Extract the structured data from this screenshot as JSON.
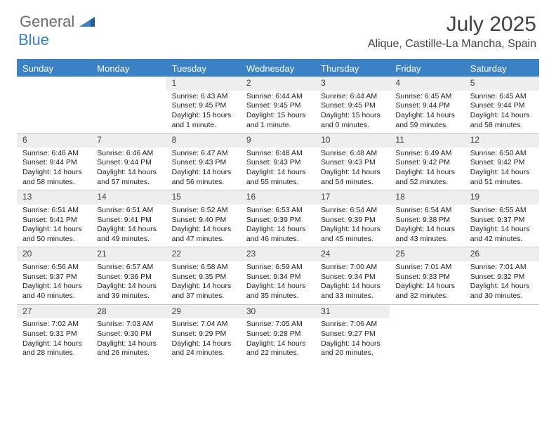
{
  "brand": {
    "general": "General",
    "blue": "Blue"
  },
  "title": "July 2025",
  "location": "Alique, Castille-La Mancha, Spain",
  "colors": {
    "header_bg": "#3b82c4",
    "daynum_bg": "#eeeeee",
    "text": "#404040",
    "border": "#c8c8c8"
  },
  "weekdays": [
    "Sunday",
    "Monday",
    "Tuesday",
    "Wednesday",
    "Thursday",
    "Friday",
    "Saturday"
  ],
  "weeks": [
    [
      null,
      null,
      {
        "n": "1",
        "sr": "Sunrise: 6:43 AM",
        "ss": "Sunset: 9:45 PM",
        "dl": "Daylight: 15 hours and 1 minute."
      },
      {
        "n": "2",
        "sr": "Sunrise: 6:44 AM",
        "ss": "Sunset: 9:45 PM",
        "dl": "Daylight: 15 hours and 1 minute."
      },
      {
        "n": "3",
        "sr": "Sunrise: 6:44 AM",
        "ss": "Sunset: 9:45 PM",
        "dl": "Daylight: 15 hours and 0 minutes."
      },
      {
        "n": "4",
        "sr": "Sunrise: 6:45 AM",
        "ss": "Sunset: 9:44 PM",
        "dl": "Daylight: 14 hours and 59 minutes."
      },
      {
        "n": "5",
        "sr": "Sunrise: 6:45 AM",
        "ss": "Sunset: 9:44 PM",
        "dl": "Daylight: 14 hours and 58 minutes."
      }
    ],
    [
      {
        "n": "6",
        "sr": "Sunrise: 6:46 AM",
        "ss": "Sunset: 9:44 PM",
        "dl": "Daylight: 14 hours and 58 minutes."
      },
      {
        "n": "7",
        "sr": "Sunrise: 6:46 AM",
        "ss": "Sunset: 9:44 PM",
        "dl": "Daylight: 14 hours and 57 minutes."
      },
      {
        "n": "8",
        "sr": "Sunrise: 6:47 AM",
        "ss": "Sunset: 9:43 PM",
        "dl": "Daylight: 14 hours and 56 minutes."
      },
      {
        "n": "9",
        "sr": "Sunrise: 6:48 AM",
        "ss": "Sunset: 9:43 PM",
        "dl": "Daylight: 14 hours and 55 minutes."
      },
      {
        "n": "10",
        "sr": "Sunrise: 6:48 AM",
        "ss": "Sunset: 9:43 PM",
        "dl": "Daylight: 14 hours and 54 minutes."
      },
      {
        "n": "11",
        "sr": "Sunrise: 6:49 AM",
        "ss": "Sunset: 9:42 PM",
        "dl": "Daylight: 14 hours and 52 minutes."
      },
      {
        "n": "12",
        "sr": "Sunrise: 6:50 AM",
        "ss": "Sunset: 9:42 PM",
        "dl": "Daylight: 14 hours and 51 minutes."
      }
    ],
    [
      {
        "n": "13",
        "sr": "Sunrise: 6:51 AM",
        "ss": "Sunset: 9:41 PM",
        "dl": "Daylight: 14 hours and 50 minutes."
      },
      {
        "n": "14",
        "sr": "Sunrise: 6:51 AM",
        "ss": "Sunset: 9:41 PM",
        "dl": "Daylight: 14 hours and 49 minutes."
      },
      {
        "n": "15",
        "sr": "Sunrise: 6:52 AM",
        "ss": "Sunset: 9:40 PM",
        "dl": "Daylight: 14 hours and 47 minutes."
      },
      {
        "n": "16",
        "sr": "Sunrise: 6:53 AM",
        "ss": "Sunset: 9:39 PM",
        "dl": "Daylight: 14 hours and 46 minutes."
      },
      {
        "n": "17",
        "sr": "Sunrise: 6:54 AM",
        "ss": "Sunset: 9:39 PM",
        "dl": "Daylight: 14 hours and 45 minutes."
      },
      {
        "n": "18",
        "sr": "Sunrise: 6:54 AM",
        "ss": "Sunset: 9:38 PM",
        "dl": "Daylight: 14 hours and 43 minutes."
      },
      {
        "n": "19",
        "sr": "Sunrise: 6:55 AM",
        "ss": "Sunset: 9:37 PM",
        "dl": "Daylight: 14 hours and 42 minutes."
      }
    ],
    [
      {
        "n": "20",
        "sr": "Sunrise: 6:56 AM",
        "ss": "Sunset: 9:37 PM",
        "dl": "Daylight: 14 hours and 40 minutes."
      },
      {
        "n": "21",
        "sr": "Sunrise: 6:57 AM",
        "ss": "Sunset: 9:36 PM",
        "dl": "Daylight: 14 hours and 39 minutes."
      },
      {
        "n": "22",
        "sr": "Sunrise: 6:58 AM",
        "ss": "Sunset: 9:35 PM",
        "dl": "Daylight: 14 hours and 37 minutes."
      },
      {
        "n": "23",
        "sr": "Sunrise: 6:59 AM",
        "ss": "Sunset: 9:34 PM",
        "dl": "Daylight: 14 hours and 35 minutes."
      },
      {
        "n": "24",
        "sr": "Sunrise: 7:00 AM",
        "ss": "Sunset: 9:34 PM",
        "dl": "Daylight: 14 hours and 33 minutes."
      },
      {
        "n": "25",
        "sr": "Sunrise: 7:01 AM",
        "ss": "Sunset: 9:33 PM",
        "dl": "Daylight: 14 hours and 32 minutes."
      },
      {
        "n": "26",
        "sr": "Sunrise: 7:01 AM",
        "ss": "Sunset: 9:32 PM",
        "dl": "Daylight: 14 hours and 30 minutes."
      }
    ],
    [
      {
        "n": "27",
        "sr": "Sunrise: 7:02 AM",
        "ss": "Sunset: 9:31 PM",
        "dl": "Daylight: 14 hours and 28 minutes."
      },
      {
        "n": "28",
        "sr": "Sunrise: 7:03 AM",
        "ss": "Sunset: 9:30 PM",
        "dl": "Daylight: 14 hours and 26 minutes."
      },
      {
        "n": "29",
        "sr": "Sunrise: 7:04 AM",
        "ss": "Sunset: 9:29 PM",
        "dl": "Daylight: 14 hours and 24 minutes."
      },
      {
        "n": "30",
        "sr": "Sunrise: 7:05 AM",
        "ss": "Sunset: 9:28 PM",
        "dl": "Daylight: 14 hours and 22 minutes."
      },
      {
        "n": "31",
        "sr": "Sunrise: 7:06 AM",
        "ss": "Sunset: 9:27 PM",
        "dl": "Daylight: 14 hours and 20 minutes."
      },
      null,
      null
    ]
  ]
}
